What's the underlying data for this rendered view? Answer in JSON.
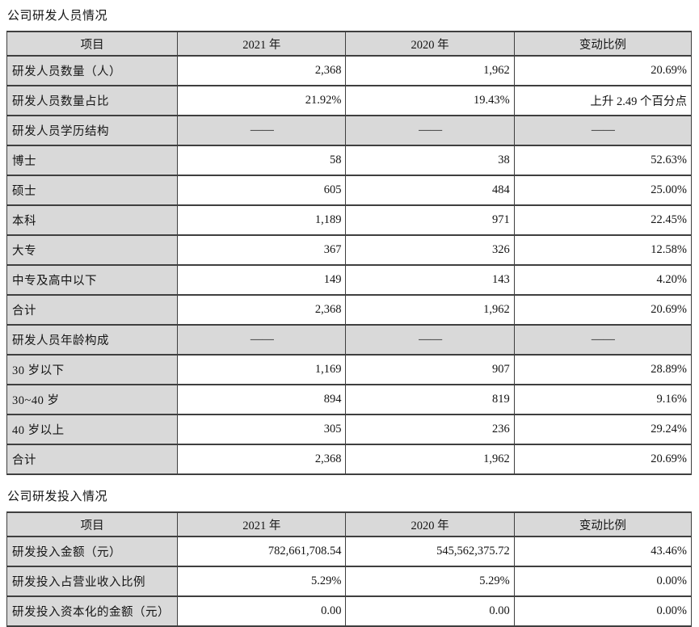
{
  "colors": {
    "cell_shade": "#d9d9d9",
    "border": "#3f3f3f",
    "text": "#141414",
    "background": "#ffffff"
  },
  "section1": {
    "title": "公司研发人员情况",
    "table": {
      "headers": [
        "项目",
        "2021 年",
        "2020 年",
        "变动比例"
      ],
      "rows": [
        {
          "type": "data",
          "label": "研发人员数量（人）",
          "y2021": "2,368",
          "y2020": "1,962",
          "change": "20.69%"
        },
        {
          "type": "data",
          "label": "研发人员数量占比",
          "y2021": "21.92%",
          "y2020": "19.43%",
          "change": "上升 2.49 个百分点"
        },
        {
          "type": "section",
          "label": "研发人员学历结构",
          "y2021": "——",
          "y2020": "——",
          "change": "——"
        },
        {
          "type": "data",
          "label": "博士",
          "y2021": "58",
          "y2020": "38",
          "change": "52.63%"
        },
        {
          "type": "data",
          "label": "硕士",
          "y2021": "605",
          "y2020": "484",
          "change": "25.00%"
        },
        {
          "type": "data",
          "label": "本科",
          "y2021": "1,189",
          "y2020": "971",
          "change": "22.45%"
        },
        {
          "type": "data",
          "label": "大专",
          "y2021": "367",
          "y2020": "326",
          "change": "12.58%"
        },
        {
          "type": "data",
          "label": "中专及高中以下",
          "y2021": "149",
          "y2020": "143",
          "change": "4.20%"
        },
        {
          "type": "data",
          "label": "合计",
          "y2021": "2,368",
          "y2020": "1,962",
          "change": "20.69%"
        },
        {
          "type": "section",
          "label": "研发人员年龄构成",
          "y2021": "——",
          "y2020": "——",
          "change": "——"
        },
        {
          "type": "data",
          "label": "30 岁以下",
          "y2021": "1,169",
          "y2020": "907",
          "change": "28.89%"
        },
        {
          "type": "data",
          "label": "30~40 岁",
          "y2021": "894",
          "y2020": "819",
          "change": "9.16%"
        },
        {
          "type": "data",
          "label": "40 岁以上",
          "y2021": "305",
          "y2020": "236",
          "change": "29.24%"
        },
        {
          "type": "data",
          "label": "合计",
          "y2021": "2,368",
          "y2020": "1,962",
          "change": "20.69%"
        }
      ]
    }
  },
  "section2": {
    "title": "公司研发投入情况",
    "table": {
      "headers": [
        "项目",
        "2021 年",
        "2020 年",
        "变动比例"
      ],
      "rows": [
        {
          "type": "data",
          "label": "研发投入金额（元）",
          "y2021": "782,661,708.54",
          "y2020": "545,562,375.72",
          "change": "43.46%"
        },
        {
          "type": "data",
          "label": "研发投入占营业收入比例",
          "y2021": "5.29%",
          "y2020": "5.29%",
          "change": "0.00%"
        },
        {
          "type": "data",
          "label": "研发投入资本化的金额（元）",
          "y2021": "0.00",
          "y2020": "0.00",
          "change": "0.00%"
        }
      ]
    }
  }
}
